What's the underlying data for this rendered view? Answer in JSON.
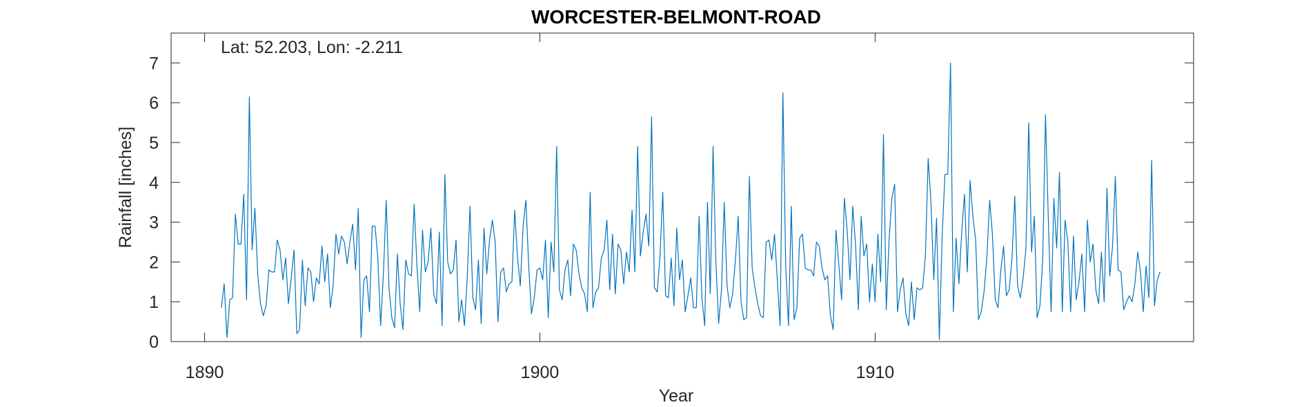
{
  "chart_data": {
    "type": "line",
    "title": "WORCESTER-BELMONT-ROAD",
    "annotation": "Lat: 52.203, Lon: -2.211",
    "xlabel": "Year",
    "ylabel": "Rainfall [inches]",
    "xlim": [
      1889,
      1919.5
    ],
    "ylim": [
      0,
      7.75
    ],
    "xticks": [
      1890,
      1900,
      1910
    ],
    "yticks": [
      0,
      1,
      2,
      3,
      4,
      5,
      6,
      7
    ],
    "grid": false,
    "line_color": "#0072BD",
    "series": [
      {
        "x_start": 1890.5,
        "x_step": 0.08333,
        "values": [
          0.85,
          1.45,
          0.1,
          1.05,
          1.1,
          3.2,
          2.45,
          2.45,
          3.7,
          1.05,
          6.15,
          2.3,
          3.35,
          1.7,
          0.95,
          0.65,
          0.9,
          1.8,
          1.75,
          1.75,
          2.55,
          2.3,
          1.55,
          2.1,
          0.95,
          1.6,
          2.3,
          0.2,
          0.3,
          2.05,
          0.9,
          1.85,
          1.75,
          1.0,
          1.6,
          1.45,
          2.4,
          1.5,
          2.2,
          0.85,
          1.4,
          2.7,
          2.2,
          2.65,
          2.5,
          1.95,
          2.5,
          2.95,
          1.8,
          3.35,
          0.1,
          1.55,
          1.65,
          0.75,
          2.9,
          2.9,
          2.1,
          0.4,
          1.7,
          3.55,
          1.35,
          0.6,
          0.35,
          2.2,
          0.95,
          0.3,
          2.05,
          1.7,
          1.65,
          3.45,
          1.9,
          0.75,
          2.8,
          1.75,
          2.0,
          2.85,
          1.2,
          0.95,
          2.75,
          0.4,
          4.2,
          2.0,
          1.7,
          1.8,
          2.55,
          0.5,
          1.05,
          0.4,
          1.6,
          3.4,
          1.1,
          0.8,
          2.05,
          0.45,
          2.85,
          1.7,
          2.55,
          3.05,
          2.5,
          0.5,
          1.75,
          1.85,
          1.25,
          1.45,
          1.5,
          3.3,
          2.1,
          1.4,
          2.9,
          3.55,
          1.9,
          0.7,
          1.1,
          1.8,
          1.85,
          1.55,
          2.55,
          0.6,
          2.5,
          1.75,
          4.9,
          1.3,
          1.05,
          1.8,
          2.05,
          1.15,
          2.45,
          2.3,
          1.7,
          1.35,
          1.2,
          0.75,
          3.75,
          0.85,
          1.25,
          1.35,
          2.1,
          2.3,
          3.05,
          1.3,
          2.7,
          1.2,
          2.45,
          2.3,
          1.45,
          2.25,
          1.75,
          3.3,
          1.75,
          4.9,
          2.15,
          2.75,
          3.2,
          2.4,
          5.65,
          1.35,
          1.25,
          2.15,
          3.75,
          1.15,
          1.1,
          2.1,
          0.9,
          2.85,
          1.55,
          2.05,
          0.75,
          1.15,
          1.6,
          0.85,
          0.85,
          3.15,
          1.1,
          0.4,
          3.5,
          1.2,
          4.9,
          2.0,
          0.45,
          1.3,
          3.5,
          1.4,
          0.85,
          1.2,
          2.05,
          3.15,
          1.0,
          0.55,
          0.6,
          4.15,
          1.85,
          1.35,
          0.95,
          0.65,
          0.6,
          2.5,
          2.55,
          2.05,
          2.7,
          1.55,
          0.4,
          6.25,
          1.9,
          0.4,
          3.4,
          0.55,
          0.85,
          2.6,
          2.7,
          1.85,
          1.8,
          1.8,
          1.65,
          2.5,
          2.4,
          1.85,
          1.55,
          1.65,
          0.65,
          0.3,
          2.8,
          1.95,
          1.05,
          3.6,
          2.8,
          1.55,
          3.4,
          2.45,
          0.8,
          3.15,
          2.15,
          2.45,
          1.0,
          1.95,
          1.0,
          2.7,
          1.5,
          5.2,
          0.8,
          2.55,
          3.6,
          3.95,
          0.75,
          1.3,
          1.6,
          0.7,
          0.4,
          1.5,
          0.55,
          1.35,
          1.3,
          1.35,
          2.15,
          4.6,
          3.5,
          1.55,
          3.1,
          0.05,
          2.65,
          4.2,
          4.2,
          7.0,
          0.75,
          2.6,
          1.45,
          2.75,
          3.7,
          1.75,
          4.05,
          3.15,
          2.55,
          0.55,
          0.75,
          1.25,
          2.1,
          3.55,
          2.7,
          1.05,
          0.85,
          1.8,
          2.4,
          1.15,
          1.3,
          2.1,
          3.65,
          1.4,
          1.1,
          1.6,
          2.35,
          5.5,
          2.25,
          3.15,
          0.6,
          0.9,
          2.05,
          5.7,
          3.1,
          0.75,
          3.6,
          2.35,
          4.25,
          0.75,
          3.05,
          2.5,
          0.75,
          2.65,
          1.05,
          1.5,
          2.2,
          0.75,
          3.05,
          2.0,
          2.45,
          1.3,
          0.95,
          2.25,
          1.0,
          3.85,
          1.65,
          2.4,
          4.15,
          1.8,
          1.75,
          0.8,
          1.0,
          1.15,
          1.0,
          1.45,
          2.25,
          1.75,
          0.75,
          1.9,
          1.1,
          4.55,
          0.9,
          1.55,
          1.75
        ]
      }
    ]
  }
}
